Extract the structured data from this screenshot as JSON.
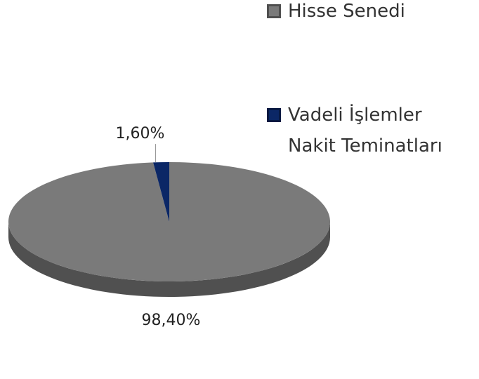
{
  "chart_data": {
    "type": "pie",
    "categories": [
      "Hisse Senedi",
      "Vadeli İşlemler Nakit Teminatları"
    ],
    "values": [
      98.4,
      1.6
    ],
    "value_labels": [
      "98,40%",
      "1,60%"
    ],
    "colors": [
      "#7a7a7a",
      "#0b2766"
    ]
  }
}
